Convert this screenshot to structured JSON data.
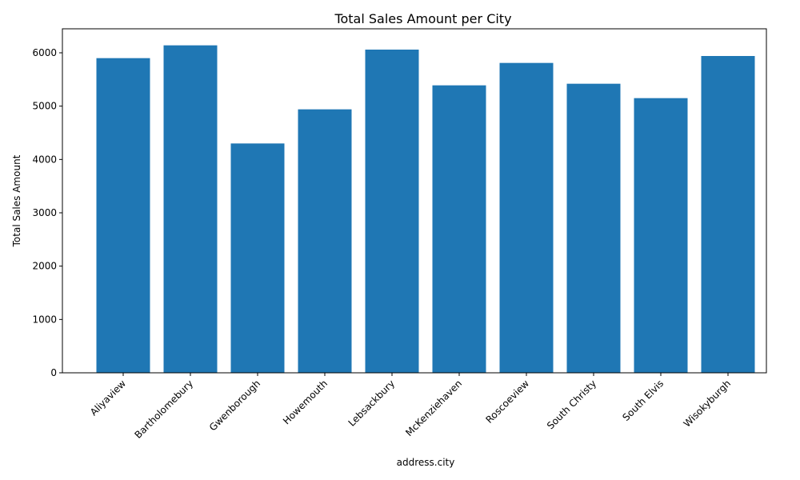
{
  "chart_data": {
    "type": "bar",
    "title": "Total Sales Amount per City",
    "xlabel": "address.city",
    "ylabel": "Total Sales Amount",
    "categories": [
      "Aliyaview",
      "Bartholomebury",
      "Gwenborough",
      "Howemouth",
      "Lebsackbury",
      "McKenziehaven",
      "Roscoeview",
      "South Christy",
      "South Elvis",
      "Wisokyburgh"
    ],
    "values": [
      5900,
      6140,
      4300,
      4940,
      6060,
      5390,
      5810,
      5420,
      5150,
      5940
    ],
    "ylim": [
      0,
      6450
    ],
    "yticks": [
      0,
      1000,
      2000,
      3000,
      4000,
      5000,
      6000
    ],
    "bar_color": "#1f77b4",
    "grid": false,
    "legend": "none"
  }
}
